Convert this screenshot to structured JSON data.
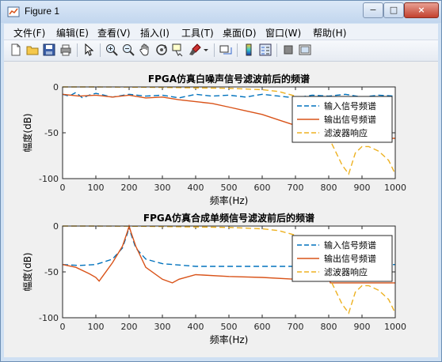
{
  "window": {
    "title": "Figure 1",
    "controls": {
      "minimize": "−",
      "maximize": "□",
      "close": "×"
    }
  },
  "menu": [
    "文件(F)",
    "编辑(E)",
    "查看(V)",
    "插入(I)",
    "工具(T)",
    "桌面(D)",
    "窗口(W)",
    "帮助(H)"
  ],
  "toolbar_icons": [
    "new-figure-icon",
    "open-file-icon",
    "save-icon",
    "print-icon",
    "pointer-icon",
    "zoom-in-icon",
    "zoom-out-icon",
    "pan-hand-icon",
    "rotate-3d-icon",
    "data-cursor-icon",
    "brush-icon",
    "link-plot-icon",
    "colorbar-icon",
    "legend-icon",
    "hide-plot-tools-icon",
    "show-plot-tools-icon"
  ],
  "chart_data": [
    {
      "type": "line",
      "title": "FPGA仿真白噪声信号滤波前后的频谱",
      "xlabel": "频率(Hz)",
      "ylabel": "幅度(dB)",
      "xlim": [
        0,
        1000
      ],
      "ylim": [
        -100,
        0
      ],
      "xticks": [
        "0",
        "100",
        "200",
        "300",
        "400",
        "500",
        "600",
        "700",
        "800",
        "900",
        "1000"
      ],
      "yticks": [
        "0",
        "-50",
        "-100"
      ],
      "grid": false,
      "legend": "top-right",
      "series": [
        {
          "name": "输入信号频谱",
          "color": "#0072bd",
          "style": "dashed",
          "x": [
            0,
            20,
            40,
            60,
            80,
            100,
            150,
            200,
            250,
            300,
            350,
            400,
            450,
            500,
            550,
            600,
            650,
            700,
            750,
            800,
            850,
            900,
            950,
            1000
          ],
          "y": [
            -8,
            -10,
            -6,
            -12,
            -9,
            -7,
            -11,
            -8,
            -10,
            -9,
            -12,
            -8,
            -10,
            -9,
            -11,
            -8,
            -10,
            -12,
            -9,
            -10,
            -8,
            -11,
            -9,
            -10
          ]
        },
        {
          "name": "输出信号频谱",
          "color": "#d95319",
          "style": "solid",
          "x": [
            0,
            50,
            100,
            150,
            200,
            250,
            300,
            350,
            400,
            450,
            500,
            550,
            600,
            650,
            700,
            750,
            800,
            820,
            850,
            900,
            950,
            1000
          ],
          "y": [
            -8,
            -10,
            -9,
            -11,
            -9,
            -12,
            -11,
            -14,
            -16,
            -18,
            -22,
            -26,
            -30,
            -36,
            -42,
            -50,
            -55,
            -56,
            -56,
            -56,
            -56,
            -56
          ]
        },
        {
          "name": "滤波器响应",
          "color": "#edb120",
          "style": "dashed",
          "x": [
            0,
            100,
            200,
            300,
            400,
            500,
            600,
            650,
            700,
            750,
            780,
            800,
            820,
            840,
            860,
            880,
            900,
            920,
            950,
            980,
            1000
          ],
          "y": [
            0,
            0,
            -0.2,
            -0.5,
            -1,
            -1.5,
            -3,
            -5,
            -10,
            -20,
            -35,
            -55,
            -70,
            -85,
            -95,
            -72,
            -65,
            -65,
            -70,
            -80,
            -95
          ]
        }
      ]
    },
    {
      "type": "line",
      "title": "FPGA仿真合成单频信号滤波前后的频谱",
      "xlabel": "频率(Hz)",
      "ylabel": "幅度(dB)",
      "xlim": [
        0,
        1000
      ],
      "ylim": [
        -100,
        0
      ],
      "xticks": [
        "0",
        "100",
        "200",
        "300",
        "400",
        "500",
        "600",
        "700",
        "800",
        "900",
        "1000"
      ],
      "yticks": [
        "0",
        "-50",
        "-100"
      ],
      "grid": false,
      "legend": "top-right",
      "series": [
        {
          "name": "输入信号频谱",
          "color": "#0072bd",
          "style": "dashed",
          "x": [
            0,
            50,
            100,
            150,
            180,
            195,
            200,
            205,
            220,
            250,
            300,
            400,
            500,
            600,
            700,
            800,
            900,
            1000
          ],
          "y": [
            -42,
            -43,
            -42,
            -36,
            -24,
            -8,
            0,
            -8,
            -24,
            -36,
            -41,
            -44,
            -44,
            -44,
            -44,
            -44,
            -43,
            -42
          ]
        },
        {
          "name": "输出信号频谱",
          "color": "#d95319",
          "style": "solid",
          "x": [
            0,
            40,
            80,
            100,
            110,
            120,
            150,
            180,
            195,
            200,
            205,
            220,
            250,
            300,
            330,
            350,
            400,
            500,
            600,
            700,
            790,
            800,
            805,
            820,
            900,
            1000
          ],
          "y": [
            -42,
            -45,
            -52,
            -56,
            -60,
            -55,
            -40,
            -22,
            -6,
            0,
            -6,
            -22,
            -45,
            -58,
            -62,
            -58,
            -53,
            -55,
            -56,
            -58,
            -60,
            -56,
            -62,
            -62,
            -62,
            -62
          ]
        },
        {
          "name": "滤波器响应",
          "color": "#edb120",
          "style": "dashed",
          "x": [
            0,
            100,
            200,
            300,
            400,
            500,
            600,
            650,
            700,
            750,
            780,
            800,
            820,
            840,
            860,
            880,
            900,
            920,
            950,
            980,
            1000
          ],
          "y": [
            0,
            0,
            -0.2,
            -0.5,
            -1,
            -1.5,
            -3,
            -5,
            -10,
            -20,
            -35,
            -55,
            -70,
            -85,
            -95,
            -72,
            -65,
            -65,
            -70,
            -80,
            -95
          ]
        }
      ]
    }
  ]
}
